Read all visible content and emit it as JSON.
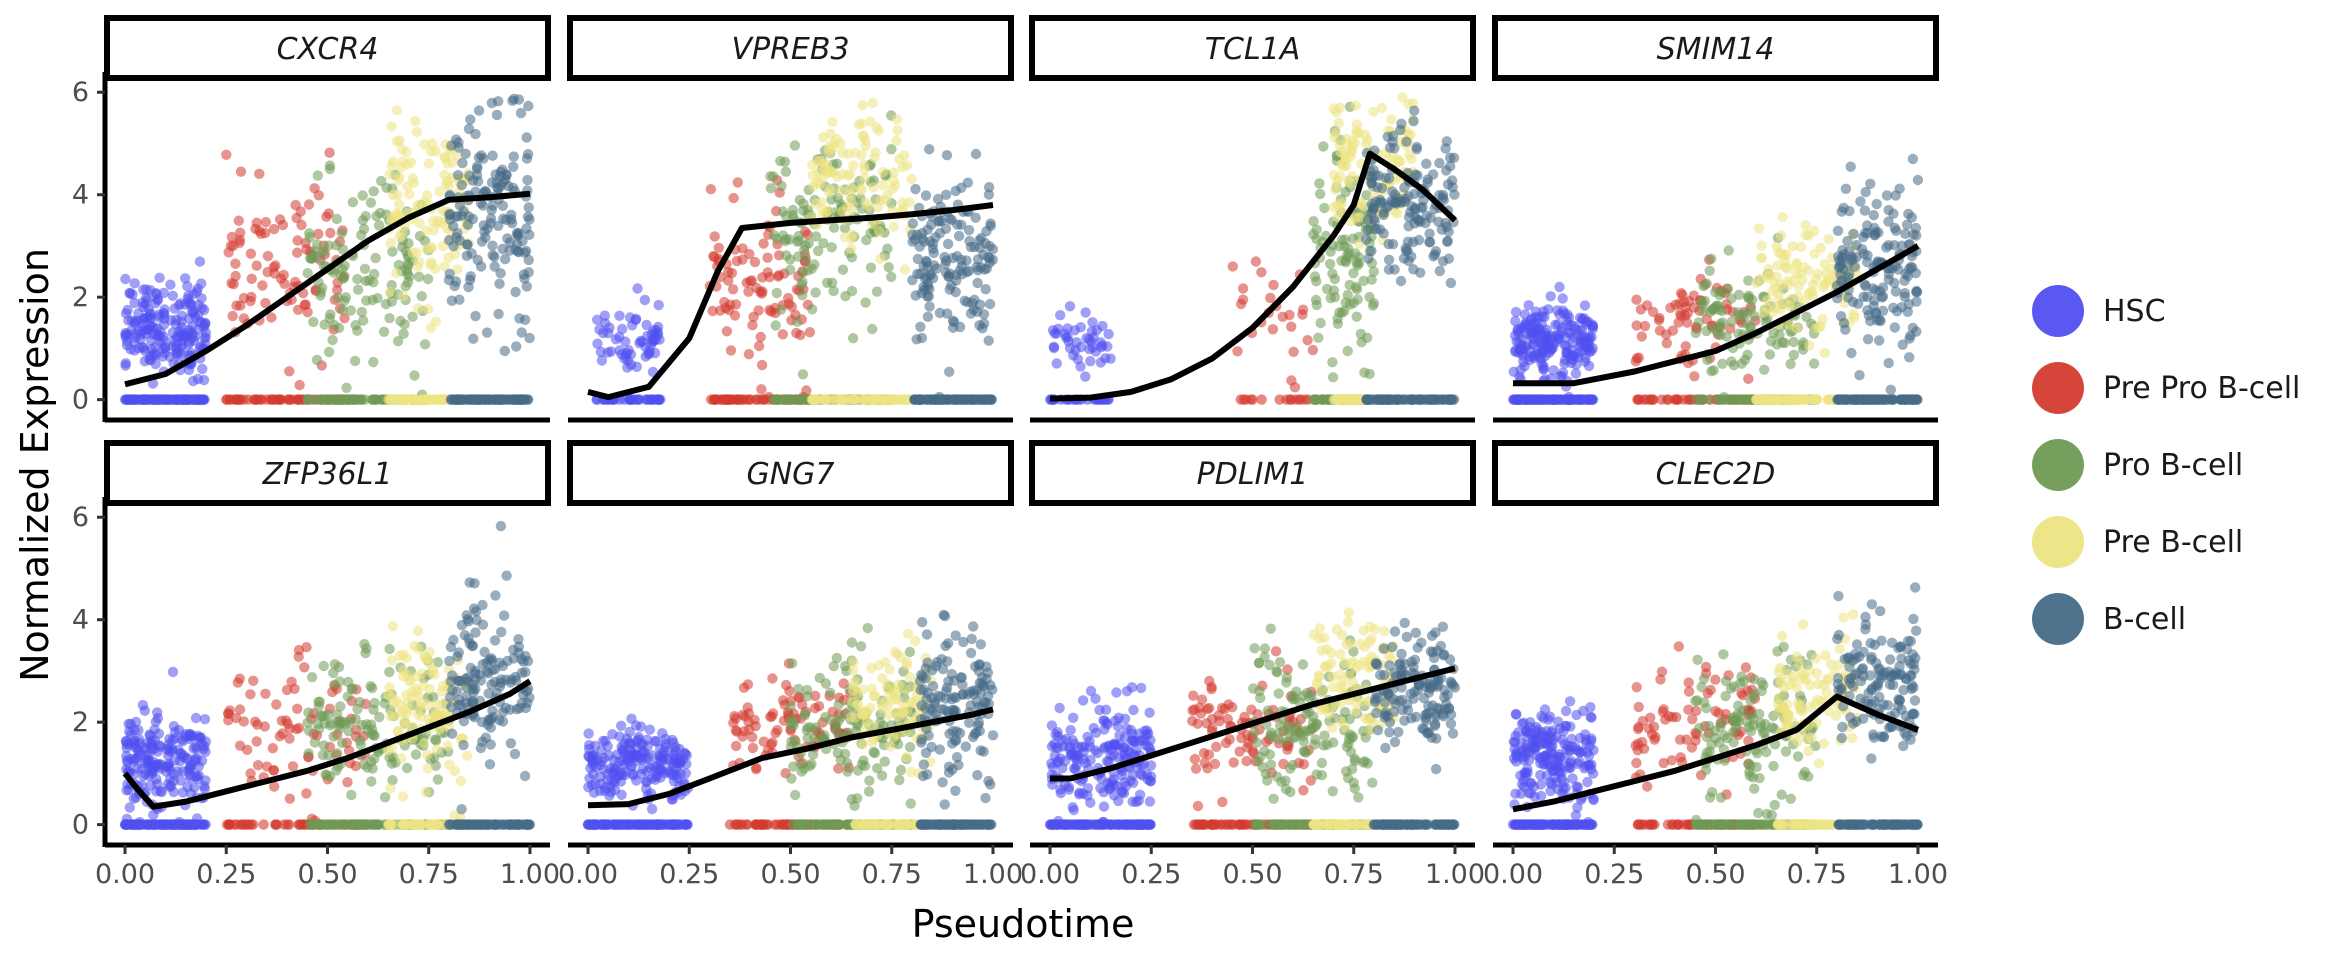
{
  "chart_data": {
    "type": "scatter",
    "xlabel": "Pseudotime",
    "ylabel": "Normalized Expression",
    "xlim": [
      0,
      1
    ],
    "ylim": [
      0,
      6
    ],
    "x_ticks": [
      "0.00",
      "0.25",
      "0.50",
      "0.75",
      "1.00"
    ],
    "y_ticks": [
      "0",
      "2",
      "4",
      "6"
    ],
    "facet_layout": "2x4",
    "legend_position": "right",
    "legend": [
      {
        "name": "HSC",
        "color": "#5050f0"
      },
      {
        "name": "Pre Pro B-cell",
        "color": "#d43b2f"
      },
      {
        "name": "Pro B-cell",
        "color": "#6f9a55"
      },
      {
        "name": "Pre B-cell",
        "color": "#ede482"
      },
      {
        "name": "B-cell",
        "color": "#466a87"
      }
    ],
    "panels": [
      {
        "gene": "CXCR4",
        "fit_line": [
          [
            0,
            0.3
          ],
          [
            0.1,
            0.5
          ],
          [
            0.2,
            0.95
          ],
          [
            0.3,
            1.45
          ],
          [
            0.4,
            2.0
          ],
          [
            0.5,
            2.55
          ],
          [
            0.6,
            3.1
          ],
          [
            0.7,
            3.55
          ],
          [
            0.8,
            3.9
          ],
          [
            0.9,
            3.95
          ],
          [
            1.0,
            4.02
          ]
        ],
        "clusters": [
          {
            "type": "HSC",
            "x": [
              0.0,
              0.2
            ],
            "ymean": 1.4,
            "ysd": 0.45,
            "n": 200
          },
          {
            "type": "Pre Pro B-cell",
            "x": [
              0.25,
              0.55
            ],
            "ymean": 2.6,
            "ysd": 0.8,
            "n": 95
          },
          {
            "type": "Pro B-cell",
            "x": [
              0.45,
              0.75
            ],
            "ymean": 2.4,
            "ysd": 0.9,
            "n": 130
          },
          {
            "type": "Pre B-cell",
            "x": [
              0.65,
              0.85
            ],
            "ymean": 3.8,
            "ysd": 0.8,
            "n": 120
          },
          {
            "type": "B-cell",
            "x": [
              0.8,
              1.0
            ],
            "ymean": 3.5,
            "ysd": 1.1,
            "n": 160
          }
        ]
      },
      {
        "gene": "VPREB3",
        "fit_line": [
          [
            0,
            0.15
          ],
          [
            0.05,
            0.05
          ],
          [
            0.15,
            0.25
          ],
          [
            0.25,
            1.2
          ],
          [
            0.32,
            2.5
          ],
          [
            0.38,
            3.35
          ],
          [
            0.5,
            3.45
          ],
          [
            0.6,
            3.5
          ],
          [
            0.7,
            3.55
          ],
          [
            0.8,
            3.62
          ],
          [
            0.9,
            3.7
          ],
          [
            1.0,
            3.8
          ]
        ],
        "clusters": [
          {
            "type": "HSC",
            "x": [
              0.02,
              0.18
            ],
            "ymean": 1.2,
            "ysd": 0.35,
            "n": 60
          },
          {
            "type": "Pre Pro B-cell",
            "x": [
              0.3,
              0.55
            ],
            "ymean": 2.4,
            "ysd": 0.8,
            "n": 95
          },
          {
            "type": "Pro B-cell",
            "x": [
              0.45,
              0.75
            ],
            "ymean": 3.4,
            "ysd": 0.9,
            "n": 130
          },
          {
            "type": "Pre B-cell",
            "x": [
              0.55,
              0.8
            ],
            "ymean": 4.3,
            "ysd": 0.7,
            "n": 110
          },
          {
            "type": "B-cell",
            "x": [
              0.8,
              1.0
            ],
            "ymean": 2.8,
            "ysd": 0.8,
            "n": 150
          }
        ]
      },
      {
        "gene": "TCL1A",
        "fit_line": [
          [
            0,
            0.02
          ],
          [
            0.1,
            0.04
          ],
          [
            0.2,
            0.15
          ],
          [
            0.3,
            0.4
          ],
          [
            0.4,
            0.8
          ],
          [
            0.5,
            1.4
          ],
          [
            0.6,
            2.2
          ],
          [
            0.7,
            3.2
          ],
          [
            0.75,
            3.8
          ],
          [
            0.79,
            4.8
          ],
          [
            0.85,
            4.5
          ],
          [
            0.92,
            4.1
          ],
          [
            1.0,
            3.5
          ]
        ],
        "clusters": [
          {
            "type": "HSC",
            "x": [
              0.0,
              0.15
            ],
            "ymean": 1.1,
            "ysd": 0.3,
            "n": 45
          },
          {
            "type": "Pre Pro B-cell",
            "x": [
              0.45,
              0.65
            ],
            "ymean": 1.8,
            "ysd": 0.6,
            "n": 25
          },
          {
            "type": "Pro B-cell",
            "x": [
              0.65,
              0.8
            ],
            "ymean": 3.0,
            "ysd": 1.0,
            "n": 110
          },
          {
            "type": "Pre B-cell",
            "x": [
              0.7,
              0.9
            ],
            "ymean": 4.6,
            "ysd": 0.7,
            "n": 110
          },
          {
            "type": "B-cell",
            "x": [
              0.78,
              1.0
            ],
            "ymean": 3.7,
            "ysd": 0.8,
            "n": 150
          }
        ]
      },
      {
        "gene": "SMIM14",
        "fit_line": [
          [
            0,
            0.32
          ],
          [
            0.15,
            0.32
          ],
          [
            0.3,
            0.55
          ],
          [
            0.4,
            0.75
          ],
          [
            0.5,
            0.95
          ],
          [
            0.6,
            1.3
          ],
          [
            0.7,
            1.7
          ],
          [
            0.8,
            2.1
          ],
          [
            0.9,
            2.55
          ],
          [
            1.0,
            3.0
          ]
        ],
        "clusters": [
          {
            "type": "HSC",
            "x": [
              0.0,
              0.2
            ],
            "ymean": 1.1,
            "ysd": 0.35,
            "n": 200
          },
          {
            "type": "Pre Pro B-cell",
            "x": [
              0.3,
              0.6
            ],
            "ymean": 1.6,
            "ysd": 0.45,
            "n": 70
          },
          {
            "type": "Pro B-cell",
            "x": [
              0.45,
              0.75
            ],
            "ymean": 1.6,
            "ysd": 0.55,
            "n": 110
          },
          {
            "type": "Pre B-cell",
            "x": [
              0.6,
              0.85
            ],
            "ymean": 2.3,
            "ysd": 0.6,
            "n": 110
          },
          {
            "type": "B-cell",
            "x": [
              0.8,
              1.0
            ],
            "ymean": 2.6,
            "ysd": 0.8,
            "n": 160
          }
        ]
      },
      {
        "gene": "ZFP36L1",
        "fit_line": [
          [
            0,
            1.0
          ],
          [
            0.03,
            0.7
          ],
          [
            0.07,
            0.35
          ],
          [
            0.15,
            0.45
          ],
          [
            0.25,
            0.65
          ],
          [
            0.35,
            0.85
          ],
          [
            0.45,
            1.05
          ],
          [
            0.55,
            1.3
          ],
          [
            0.65,
            1.6
          ],
          [
            0.75,
            1.9
          ],
          [
            0.85,
            2.2
          ],
          [
            0.95,
            2.55
          ],
          [
            1.0,
            2.8
          ]
        ],
        "clusters": [
          {
            "type": "HSC",
            "x": [
              0.0,
              0.2
            ],
            "ymean": 1.2,
            "ysd": 0.5,
            "n": 200
          },
          {
            "type": "Pre Pro B-cell",
            "x": [
              0.25,
              0.6
            ],
            "ymean": 1.8,
            "ysd": 0.7,
            "n": 80
          },
          {
            "type": "Pro B-cell",
            "x": [
              0.45,
              0.8
            ],
            "ymean": 1.9,
            "ysd": 0.7,
            "n": 140
          },
          {
            "type": "Pre B-cell",
            "x": [
              0.65,
              0.85
            ],
            "ymean": 2.3,
            "ysd": 0.7,
            "n": 110
          },
          {
            "type": "B-cell",
            "x": [
              0.8,
              1.0
            ],
            "ymean": 2.8,
            "ysd": 0.8,
            "n": 140
          }
        ]
      },
      {
        "gene": "GNG7",
        "fit_line": [
          [
            0,
            0.38
          ],
          [
            0.1,
            0.4
          ],
          [
            0.2,
            0.6
          ],
          [
            0.3,
            0.9
          ],
          [
            0.43,
            1.3
          ],
          [
            0.55,
            1.5
          ],
          [
            0.65,
            1.7
          ],
          [
            0.75,
            1.85
          ],
          [
            0.85,
            2.0
          ],
          [
            0.95,
            2.15
          ],
          [
            1.0,
            2.25
          ]
        ],
        "clusters": [
          {
            "type": "HSC",
            "x": [
              0.0,
              0.25
            ],
            "ymean": 1.2,
            "ysd": 0.35,
            "n": 200
          },
          {
            "type": "Pre Pro B-cell",
            "x": [
              0.35,
              0.65
            ],
            "ymean": 1.9,
            "ysd": 0.55,
            "n": 90
          },
          {
            "type": "Pro B-cell",
            "x": [
              0.5,
              0.8
            ],
            "ymean": 1.9,
            "ysd": 0.65,
            "n": 140
          },
          {
            "type": "Pre B-cell",
            "x": [
              0.65,
              0.85
            ],
            "ymean": 2.3,
            "ysd": 0.55,
            "n": 100
          },
          {
            "type": "B-cell",
            "x": [
              0.82,
              1.0
            ],
            "ymean": 2.3,
            "ysd": 0.7,
            "n": 140
          }
        ]
      },
      {
        "gene": "PDLIM1",
        "fit_line": [
          [
            0,
            0.9
          ],
          [
            0.05,
            0.9
          ],
          [
            0.15,
            1.1
          ],
          [
            0.25,
            1.35
          ],
          [
            0.35,
            1.6
          ],
          [
            0.45,
            1.85
          ],
          [
            0.55,
            2.1
          ],
          [
            0.65,
            2.35
          ],
          [
            0.75,
            2.55
          ],
          [
            0.85,
            2.75
          ],
          [
            0.95,
            2.95
          ],
          [
            1.0,
            3.05
          ]
        ],
        "clusters": [
          {
            "type": "HSC",
            "x": [
              0.0,
              0.25
            ],
            "ymean": 1.3,
            "ysd": 0.5,
            "n": 200
          },
          {
            "type": "Pre Pro B-cell",
            "x": [
              0.35,
              0.65
            ],
            "ymean": 1.9,
            "ysd": 0.6,
            "n": 90
          },
          {
            "type": "Pro B-cell",
            "x": [
              0.5,
              0.8
            ],
            "ymean": 2.0,
            "ysd": 0.65,
            "n": 140
          },
          {
            "type": "Pre B-cell",
            "x": [
              0.65,
              0.85
            ],
            "ymean": 2.8,
            "ysd": 0.6,
            "n": 100
          },
          {
            "type": "B-cell",
            "x": [
              0.8,
              1.0
            ],
            "ymean": 2.7,
            "ysd": 0.55,
            "n": 140
          }
        ]
      },
      {
        "gene": "CLEC2D",
        "fit_line": [
          [
            0,
            0.3
          ],
          [
            0.1,
            0.45
          ],
          [
            0.2,
            0.65
          ],
          [
            0.3,
            0.85
          ],
          [
            0.4,
            1.05
          ],
          [
            0.5,
            1.3
          ],
          [
            0.6,
            1.55
          ],
          [
            0.7,
            1.85
          ],
          [
            0.8,
            2.5
          ],
          [
            0.9,
            2.15
          ],
          [
            1.0,
            1.85
          ]
        ],
        "clusters": [
          {
            "type": "HSC",
            "x": [
              0.0,
              0.2
            ],
            "ymean": 1.3,
            "ysd": 0.45,
            "n": 200
          },
          {
            "type": "Pre Pro B-cell",
            "x": [
              0.3,
              0.6
            ],
            "ymean": 1.8,
            "ysd": 0.6,
            "n": 80
          },
          {
            "type": "Pro B-cell",
            "x": [
              0.45,
              0.75
            ],
            "ymean": 1.9,
            "ysd": 0.7,
            "n": 130
          },
          {
            "type": "Pre B-cell",
            "x": [
              0.65,
              0.85
            ],
            "ymean": 2.6,
            "ysd": 0.6,
            "n": 100
          },
          {
            "type": "B-cell",
            "x": [
              0.8,
              1.0
            ],
            "ymean": 2.8,
            "ysd": 0.7,
            "n": 140
          }
        ]
      }
    ]
  }
}
